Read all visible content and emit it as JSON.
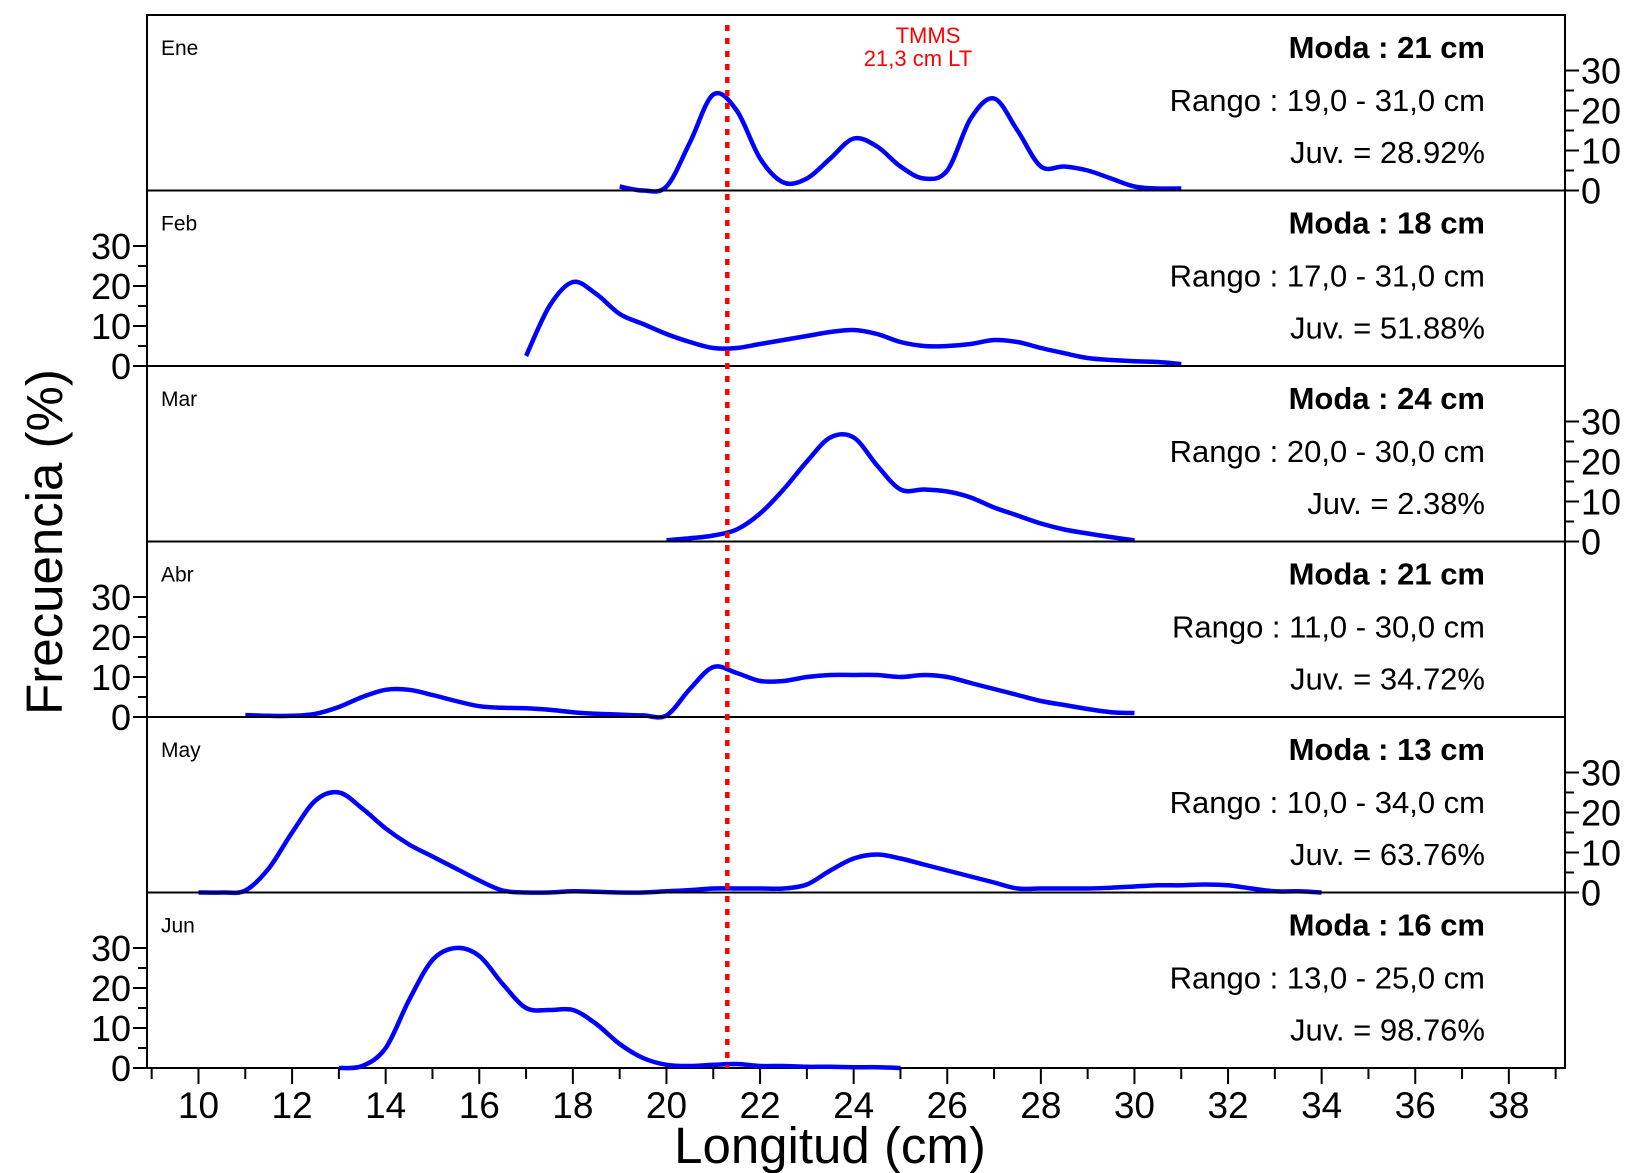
{
  "chart_data": {
    "type": "line",
    "xlabel": "Longitud (cm)",
    "ylabel": "Frecuencia (%)",
    "xlim": [
      8.9,
      39.2
    ],
    "x_ticks": [
      10,
      12,
      14,
      16,
      18,
      20,
      22,
      24,
      26,
      28,
      30,
      32,
      34,
      36,
      38
    ],
    "ylim": [
      0,
      35
    ],
    "y_ticks": [
      0,
      10,
      20,
      30
    ],
    "colors": {
      "series": "#0000ff",
      "reference": "#ff0000"
    },
    "reference_line": {
      "x": 21.3,
      "label_line1": "TMMS",
      "label_line2": "21,3 cm LT"
    },
    "panels": [
      {
        "name": "Ene",
        "y_axis_side": "right",
        "moda": "Moda : 21 cm",
        "rango": "Rango : 19,0 - 31,0 cm",
        "juv": "Juv. = 28.92%",
        "x": [
          19,
          19.5,
          20,
          20.5,
          21,
          21.5,
          22,
          22.5,
          23,
          23.5,
          24,
          24.5,
          25,
          25.5,
          26,
          26.5,
          27,
          27.5,
          28,
          28.5,
          29,
          29.5,
          30,
          30.5,
          31
        ],
        "y": [
          1,
          0,
          1,
          12,
          24,
          20,
          8,
          2,
          3,
          8,
          13,
          11,
          6,
          3,
          5,
          18,
          23,
          15,
          6,
          6,
          5,
          3,
          1,
          0.5,
          0.5
        ]
      },
      {
        "name": "Feb",
        "y_axis_side": "left",
        "moda": "Moda : 18 cm",
        "rango": "Rango : 17,0 - 31,0 cm",
        "juv": "Juv. = 51.88%",
        "x": [
          17,
          17.5,
          18,
          18.5,
          19,
          19.5,
          20,
          20.5,
          21,
          21.5,
          22,
          22.5,
          23,
          23.5,
          24,
          24.5,
          25,
          25.5,
          26,
          26.5,
          27,
          27.5,
          28,
          28.5,
          29,
          29.5,
          30,
          30.5,
          31
        ],
        "y": [
          2.5,
          15,
          21,
          18,
          13,
          10.5,
          8,
          6,
          4.5,
          4.5,
          5.5,
          6.5,
          7.5,
          8.5,
          9,
          8,
          6,
          5,
          5,
          5.5,
          6.5,
          6,
          4.5,
          3.2,
          2,
          1.5,
          1.2,
          1,
          0.5
        ]
      },
      {
        "name": "Mar",
        "y_axis_side": "right",
        "moda": "Moda : 24 cm",
        "rango": "Rango : 20,0 - 30,0 cm",
        "juv": "Juv. = 2.38%",
        "x": [
          20,
          20.5,
          21,
          21.5,
          22,
          22.5,
          23,
          23.5,
          24,
          24.5,
          25,
          25.5,
          26,
          26.5,
          27,
          27.5,
          28,
          28.5,
          29,
          29.5,
          30
        ],
        "y": [
          0.3,
          0.8,
          1.5,
          3,
          7,
          13,
          20,
          26,
          26,
          19,
          13,
          13,
          12.5,
          11,
          8.5,
          6.5,
          4.5,
          3,
          2,
          1.1,
          0.3
        ]
      },
      {
        "name": "Abr",
        "y_axis_side": "left",
        "moda": "Moda : 21 cm",
        "rango": "Rango : 11,0 - 30,0 cm",
        "juv": "Juv. = 34.72%",
        "x": [
          11,
          11.5,
          12,
          12.5,
          13,
          13.5,
          14,
          14.5,
          15,
          15.5,
          16,
          16.5,
          17,
          17.5,
          18,
          18.5,
          19,
          19.5,
          20,
          20.5,
          21,
          21.5,
          22,
          22.5,
          23,
          23.5,
          24,
          24.5,
          25,
          25.5,
          26,
          26.5,
          27,
          27.5,
          28,
          28.5,
          29,
          29.5,
          30
        ],
        "y": [
          0.5,
          0.3,
          0.3,
          0.8,
          2.5,
          5,
          6.8,
          6.8,
          5.5,
          4,
          2.7,
          2.3,
          2.2,
          1.8,
          1.2,
          0.8,
          0.6,
          0.4,
          0.4,
          7,
          12.5,
          11,
          9,
          9,
          10,
          10.5,
          10.5,
          10.5,
          10,
          10.5,
          10,
          8.5,
          7,
          5.5,
          4,
          3,
          2,
          1.2,
          1
        ]
      },
      {
        "name": "May",
        "y_axis_side": "right",
        "moda": "Moda : 13 cm",
        "rango": "Rango : 10,0 - 34,0 cm",
        "juv": "Juv. = 63.76%",
        "x": [
          10,
          10.5,
          11,
          11.5,
          12,
          12.5,
          13,
          13.5,
          14,
          14.5,
          15,
          15.5,
          16,
          16.5,
          17,
          17.5,
          18,
          18.5,
          19,
          19.5,
          20,
          20.5,
          21,
          21.5,
          22,
          22.5,
          23,
          23.5,
          24,
          24.5,
          25,
          25.5,
          26,
          26.5,
          27,
          27.5,
          28,
          28.5,
          29,
          29.5,
          30,
          30.5,
          31,
          31.5,
          32,
          32.5,
          33,
          33.5,
          34
        ],
        "y": [
          0,
          0,
          0.5,
          6,
          15,
          23,
          25,
          21,
          16,
          12,
          9,
          6,
          3,
          0.5,
          0,
          0,
          0.3,
          0.2,
          0,
          0,
          0.3,
          0.6,
          1,
          1,
          1,
          1,
          2,
          5.5,
          8.5,
          9.5,
          8.5,
          7,
          5.5,
          4,
          2.5,
          1,
          1,
          1,
          1,
          1.2,
          1.5,
          1.8,
          1.8,
          2,
          1.8,
          1,
          0.3,
          0.3,
          0
        ]
      },
      {
        "name": "Jun",
        "y_axis_side": "left",
        "moda": "Moda : 16 cm",
        "rango": "Rango : 13,0 - 25,0 cm",
        "juv": "Juv. = 98.76%",
        "x": [
          13,
          13.5,
          14,
          14.5,
          15,
          15.5,
          16,
          16.5,
          17,
          17.5,
          18,
          18.5,
          19,
          19.5,
          20,
          20.5,
          21,
          21.5,
          22,
          22.5,
          23,
          23.5,
          24,
          24.5,
          25
        ],
        "y": [
          0,
          0.5,
          5,
          17,
          27,
          30,
          28,
          21,
          15,
          14.5,
          14.5,
          11,
          6,
          2.5,
          0.8,
          0.5,
          0.8,
          1,
          0.5,
          0.5,
          0.3,
          0.3,
          0.2,
          0.2,
          0
        ]
      }
    ]
  }
}
